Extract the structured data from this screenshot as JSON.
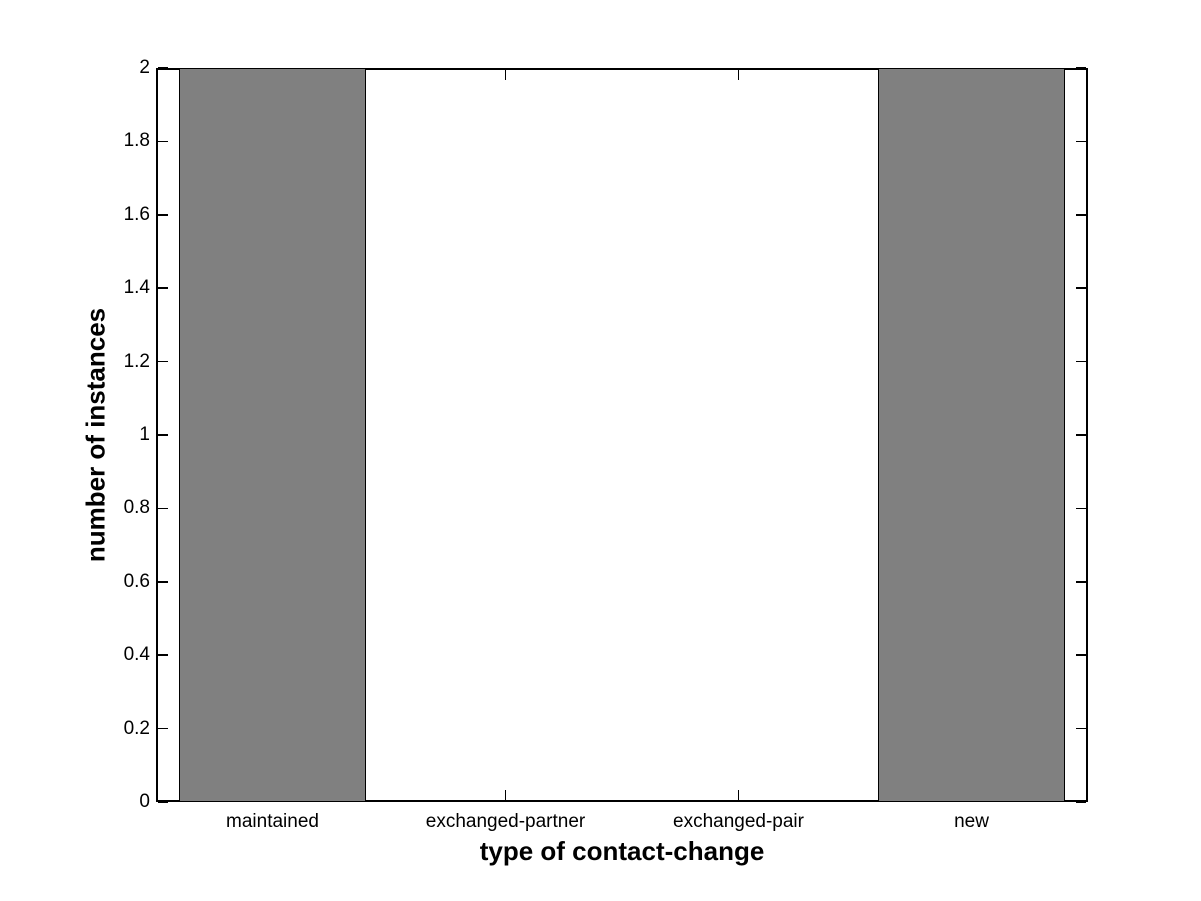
{
  "chart_data": {
    "type": "bar",
    "title": "",
    "xlabel": "type of contact-change",
    "ylabel": "number of instances",
    "categories": [
      "maintained",
      "exchanged-partner",
      "exchanged-pair",
      "new"
    ],
    "values": [
      2,
      0,
      0,
      2
    ],
    "ylim": [
      0,
      2
    ],
    "yticks": [
      0,
      0.2,
      0.4,
      0.6,
      0.8,
      1,
      1.2,
      1.4,
      1.6,
      1.8,
      2
    ],
    "ytick_labels": [
      "0",
      "0.2",
      "0.4",
      "0.6",
      "0.8",
      "1",
      "1.2",
      "1.4",
      "1.6",
      "1.8",
      "2"
    ],
    "bar_width_fraction": 0.8,
    "bar_fill": "#808080",
    "bar_edge": "#000000",
    "axis_color": "#000000",
    "background": "#ffffff",
    "grid": false,
    "legend": null,
    "tick_direction": "in",
    "box": true
  }
}
